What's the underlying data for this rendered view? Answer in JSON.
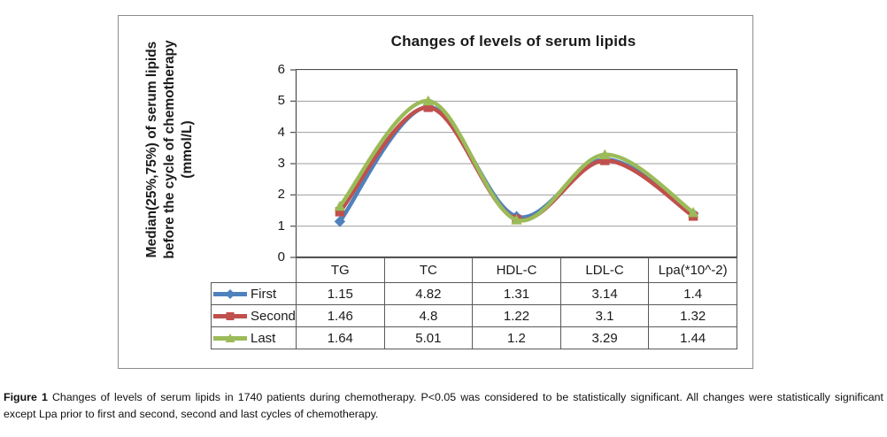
{
  "caption": {
    "label": "Figure 1",
    "text": "Changes of levels of serum lipids in 1740 patients during chemotherapy. P<0.05 was considered to be statistically significant. All changes were statistically significant except Lpa prior to first and second, second and last cycles of chemotherapy."
  },
  "chart_data": {
    "type": "line",
    "smooth": true,
    "title": "Changes of levels of serum lipids",
    "ylabel": "Median(25%,75%) of serum lipids before the cycle of chemotherapy (mmol/L)",
    "ylabel_lines": [
      "Median(25%,75%) of serum lipids",
      "before the cycle of chemotherapy",
      "(mmol/L)"
    ],
    "categories": [
      "TG",
      "TC",
      "HDL-C",
      "LDL-C",
      "Lpa(*10^-2)"
    ],
    "series": [
      {
        "name": "First",
        "marker": "diamond",
        "color": "#4F81BD",
        "values": [
          1.15,
          4.82,
          1.31,
          3.14,
          1.4
        ]
      },
      {
        "name": "Second",
        "marker": "square",
        "color": "#C0504D",
        "values": [
          1.46,
          4.8,
          1.22,
          3.1,
          1.32
        ]
      },
      {
        "name": "Last",
        "marker": "triangle",
        "color": "#9BBB59",
        "values": [
          1.64,
          5.01,
          1.2,
          3.29,
          1.44
        ]
      }
    ],
    "ylim": [
      0,
      6
    ],
    "yticks": [
      0,
      1,
      2,
      3,
      4,
      5,
      6
    ],
    "grid": true,
    "legend_position": "table-left",
    "colors": {
      "grid": "#9e9e9e",
      "axis": "#4d4d4d"
    }
  }
}
